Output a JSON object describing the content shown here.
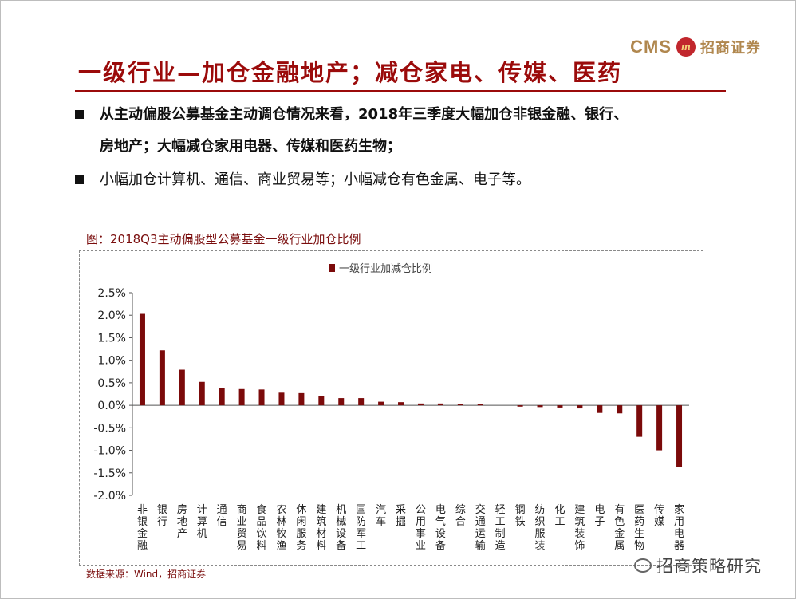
{
  "header": {
    "logo_text": "CMS",
    "logo_mark": "m",
    "logo_cn": "招商证券",
    "title": "一级行业—加仓金融地产；减仓家电、传媒、医药"
  },
  "bullets": [
    {
      "line1": "从主动偏股公募基金主动调仓情况来看，2018年三季度大幅加仓非银金融、银行、",
      "line2": "房地产；大幅减仓家用电器、传媒和医药生物；"
    },
    {
      "line1": "小幅加仓计算机、通信、商业贸易等；小幅减仓有色金属、电子等。"
    }
  ],
  "figure": {
    "title": "图：2018Q3主动偏股型公募基金一级行业加仓比例",
    "source": "数据来源：Wind，招商证券"
  },
  "watermark": {
    "text": "招商策略研究",
    "icon": "wechat-icon"
  },
  "chart_data": {
    "type": "bar",
    "title": "",
    "legend": [
      "一级行业加减仓比例"
    ],
    "legend_position": "top-center",
    "bar_color": "#7b0a0a",
    "ylim": [
      -2.0,
      2.5
    ],
    "ytick_step": 0.5,
    "ytick_labels": [
      "2.5%",
      "2.0%",
      "1.5%",
      "1.0%",
      "0.5%",
      "0.0%",
      "-0.5%",
      "-1.0%",
      "-1.5%",
      "-2.0%"
    ],
    "xlabel": "",
    "ylabel": "",
    "categories": [
      "非银金融",
      "银行",
      "房地产",
      "计算机",
      "通信",
      "商业贸易",
      "食品饮料",
      "农林牧渔",
      "休闲服务",
      "建筑材料",
      "机械设备",
      "国防军工",
      "汽车",
      "采掘",
      "公用事业",
      "电气设备",
      "综合",
      "交通运输",
      "轻工制造",
      "钢铁",
      "纺织服装",
      "化工",
      "建筑装饰",
      "电子",
      "有色金属",
      "医药生物",
      "传媒",
      "家用电器"
    ],
    "values": [
      2.03,
      1.22,
      0.79,
      0.52,
      0.38,
      0.36,
      0.35,
      0.28,
      0.27,
      0.2,
      0.16,
      0.16,
      0.08,
      0.07,
      0.04,
      0.04,
      0.03,
      0.02,
      0.0,
      -0.03,
      -0.04,
      -0.05,
      -0.07,
      -0.17,
      -0.18,
      -0.7,
      -1.0,
      -1.37
    ]
  }
}
